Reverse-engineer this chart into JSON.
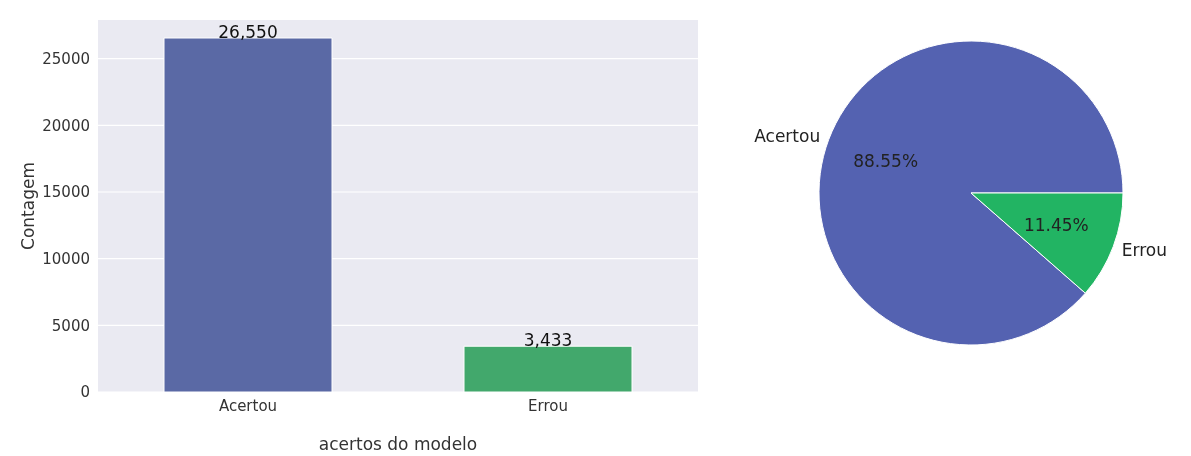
{
  "chart_data": [
    {
      "type": "bar",
      "xlabel": "acertos do modelo",
      "ylabel": "Contagem",
      "categories": [
        "Acertou",
        "Errou"
      ],
      "values": [
        26550,
        3433
      ],
      "colors": [
        "#5a69a5",
        "#42a86c"
      ],
      "value_labels": [
        "26,550",
        "3,433"
      ],
      "ylim": [
        0,
        27900
      ],
      "yticks": [
        0,
        5000,
        10000,
        15000,
        20000,
        25000
      ],
      "grid": "y",
      "legend": false
    },
    {
      "type": "pie",
      "categories": [
        "Acertou",
        "Errou"
      ],
      "values": [
        88.55,
        11.45
      ],
      "colors": [
        "#5462b1",
        "#22b463"
      ],
      "value_labels": [
        "88.55%",
        "11.45%"
      ],
      "legend": false
    }
  ]
}
